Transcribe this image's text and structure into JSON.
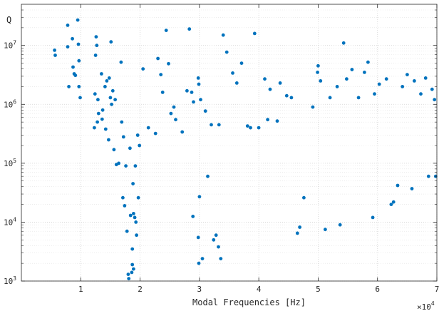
{
  "chart_data": {
    "type": "scatter",
    "xlabel": "Modal Frequencies [Hz]",
    "ylabel": "Q",
    "x_multiplier_label": "×10",
    "x_multiplier_exp": "4",
    "xlim": [
      0,
      70000
    ],
    "ylim": [
      1000,
      50000000
    ],
    "yscale": "log",
    "grid": true,
    "minor_grid": true,
    "marker_color": "#0072BD",
    "xticks": [
      {
        "value": 10000,
        "label": "1"
      },
      {
        "value": 20000,
        "label": "2"
      },
      {
        "value": 30000,
        "label": "3"
      },
      {
        "value": 40000,
        "label": "4"
      },
      {
        "value": 50000,
        "label": "5"
      },
      {
        "value": 60000,
        "label": "6"
      },
      {
        "value": 70000,
        "label": "7"
      }
    ],
    "yticks": [
      {
        "value": 1000,
        "base": "10",
        "exp": "3"
      },
      {
        "value": 10000,
        "base": "10",
        "exp": "4"
      },
      {
        "value": 100000,
        "base": "10",
        "exp": "5"
      },
      {
        "value": 1000000,
        "base": "10",
        "exp": "6"
      },
      {
        "value": 10000000,
        "base": "10",
        "exp": "7"
      }
    ],
    "points": [
      [
        5600,
        8300000
      ],
      [
        5700,
        6800000
      ],
      [
        7800,
        22000000
      ],
      [
        7800,
        9500000
      ],
      [
        8000,
        2000000
      ],
      [
        8600,
        13000000
      ],
      [
        8700,
        4300000
      ],
      [
        8900,
        3300000
      ],
      [
        9100,
        3100000
      ],
      [
        9500,
        27000000
      ],
      [
        9600,
        10500000
      ],
      [
        9700,
        5500000
      ],
      [
        9900,
        1300000
      ],
      [
        9700,
        2000000
      ],
      [
        12600,
        14000000
      ],
      [
        12500,
        6800000
      ],
      [
        12700,
        10000000
      ],
      [
        12400,
        1500000
      ],
      [
        12900,
        1200000
      ],
      [
        13500,
        3300000
      ],
      [
        14100,
        2000000
      ],
      [
        14400,
        2500000
      ],
      [
        14800,
        2800000
      ],
      [
        15100,
        11500000
      ],
      [
        15000,
        1300000
      ],
      [
        15400,
        1700000
      ],
      [
        15800,
        1200000
      ],
      [
        15200,
        1000000
      ],
      [
        13700,
        800000
      ],
      [
        13000,
        700000
      ],
      [
        12300,
        400000
      ],
      [
        12800,
        500000
      ],
      [
        13600,
        560000
      ],
      [
        14200,
        380000
      ],
      [
        14700,
        250000
      ],
      [
        15600,
        170000
      ],
      [
        16800,
        5200000
      ],
      [
        16900,
        500000
      ],
      [
        17200,
        280000
      ],
      [
        17600,
        90000
      ],
      [
        16400,
        100000
      ],
      [
        16000,
        95000
      ],
      [
        17100,
        26000
      ],
      [
        17400,
        19000
      ],
      [
        17800,
        7000
      ],
      [
        18000,
        1300
      ],
      [
        18100,
        1100
      ],
      [
        18700,
        1900
      ],
      [
        18900,
        1600
      ],
      [
        18600,
        1400
      ],
      [
        18400,
        13000
      ],
      [
        18900,
        14000
      ],
      [
        19300,
        10000
      ],
      [
        19400,
        6000
      ],
      [
        18700,
        3500
      ],
      [
        19100,
        12000
      ],
      [
        19700,
        26000
      ],
      [
        18800,
        45000
      ],
      [
        19200,
        90000
      ],
      [
        18300,
        180000
      ],
      [
        19600,
        300000
      ],
      [
        19900,
        200000
      ],
      [
        20500,
        4000000
      ],
      [
        21400,
        400000
      ],
      [
        22600,
        320000
      ],
      [
        23000,
        6000000
      ],
      [
        23500,
        3200000
      ],
      [
        23800,
        1600000
      ],
      [
        24400,
        18000000
      ],
      [
        24800,
        4900000
      ],
      [
        25200,
        700000
      ],
      [
        25700,
        900000
      ],
      [
        26000,
        550000
      ],
      [
        27100,
        340000
      ],
      [
        27900,
        1700000
      ],
      [
        28300,
        19000000
      ],
      [
        28700,
        1600000
      ],
      [
        29000,
        1100000
      ],
      [
        29800,
        2800000
      ],
      [
        29900,
        2200000
      ],
      [
        30200,
        1200000
      ],
      [
        31000,
        770000
      ],
      [
        30500,
        2400
      ],
      [
        29900,
        2000
      ],
      [
        29800,
        5500
      ],
      [
        28900,
        12500
      ],
      [
        30000,
        27000
      ],
      [
        31400,
        60000
      ],
      [
        32000,
        450000
      ],
      [
        32400,
        5000
      ],
      [
        32800,
        6000
      ],
      [
        33200,
        3800
      ],
      [
        33600,
        2400
      ],
      [
        33300,
        450000
      ],
      [
        34000,
        15000000
      ],
      [
        34600,
        7700000
      ],
      [
        35600,
        3400000
      ],
      [
        36300,
        2300000
      ],
      [
        37100,
        5000000
      ],
      [
        38100,
        430000
      ],
      [
        38600,
        400000
      ],
      [
        39300,
        16000000
      ],
      [
        40000,
        400000
      ],
      [
        41000,
        2700000
      ],
      [
        41900,
        1800000
      ],
      [
        41500,
        550000
      ],
      [
        43100,
        520000
      ],
      [
        43600,
        2300000
      ],
      [
        44700,
        1400000
      ],
      [
        45500,
        1300000
      ],
      [
        46500,
        6500
      ],
      [
        46900,
        8200
      ],
      [
        47600,
        26000
      ],
      [
        49100,
        900000
      ],
      [
        49900,
        3500000
      ],
      [
        50000,
        4500000
      ],
      [
        50400,
        2500000
      ],
      [
        51200,
        7500
      ],
      [
        52000,
        1300000
      ],
      [
        53200,
        2000000
      ],
      [
        53700,
        9000
      ],
      [
        54300,
        11000000
      ],
      [
        54800,
        2700000
      ],
      [
        55700,
        3900000
      ],
      [
        56800,
        1300000
      ],
      [
        57800,
        3500000
      ],
      [
        58400,
        5200000
      ],
      [
        59200,
        12000
      ],
      [
        59500,
        1500000
      ],
      [
        60300,
        2200000
      ],
      [
        61500,
        2700000
      ],
      [
        62300,
        20000
      ],
      [
        62700,
        22000
      ],
      [
        63400,
        42000
      ],
      [
        64200,
        2000000
      ],
      [
        65000,
        3200000
      ],
      [
        65800,
        37000
      ],
      [
        66200,
        2500000
      ],
      [
        67300,
        1500000
      ],
      [
        68100,
        2800000
      ],
      [
        68600,
        60000
      ],
      [
        69200,
        1800000
      ],
      [
        69600,
        1200000
      ],
      [
        69800,
        60000
      ]
    ]
  }
}
